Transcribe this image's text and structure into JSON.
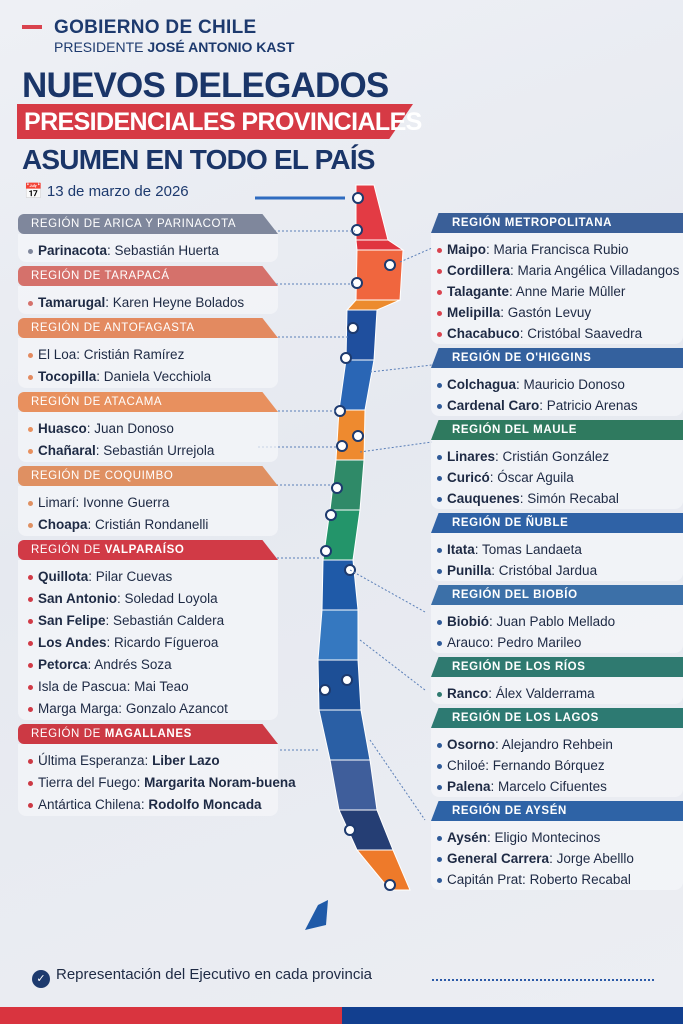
{
  "header": {
    "org": "GOBIERNO DE CHILE",
    "president_prefix": "PRESIDENTE ",
    "president_name": "JOSÉ ANTONIO KAST"
  },
  "title": {
    "line1": "NUEVOS DELEGADOS",
    "line2": "PRESIDENCIALES PROVINCIALES",
    "line3": "ASUMEN EN TODO EL PAÍS"
  },
  "date": {
    "icon": "calendar-icon",
    "text": "13 de marzo de 2026"
  },
  "left_regions": [
    {
      "prefix": "REGIÓN DE ARICA Y PARINACOTA",
      "name": "",
      "color": "#7f879c",
      "items": [
        {
          "province": "Parinacota",
          "delegate": "Sebastián Huerta",
          "bold": "province"
        }
      ]
    },
    {
      "prefix": "REGIÓN DE TARAPACÁ",
      "name": "",
      "color": "#d5716b",
      "items": [
        {
          "province": "Tamarugal",
          "delegate": "Karen Heyne Bolados",
          "bold": "province"
        }
      ]
    },
    {
      "prefix": "REGIÓN DE ANTOFAGASTA",
      "name": "",
      "color": "#e38a60",
      "items": [
        {
          "province": "El Loa",
          "delegate": "Cristián Ramírez",
          "bold": "none"
        },
        {
          "province": "Tocopilla",
          "delegate": "Daniela Vecchiola",
          "bold": "province"
        }
      ]
    },
    {
      "prefix": "REGIÓN DE ATACAMA",
      "name": "",
      "color": "#e8905e",
      "items": [
        {
          "province": "Huasco",
          "delegate": "Juan Donoso",
          "bold": "province"
        },
        {
          "province": "Chañaral",
          "delegate": "Sebastián Urrejola",
          "bold": "province"
        }
      ]
    },
    {
      "prefix": "REGIÓN DE COQUIMBO",
      "name": "",
      "color": "#df9062",
      "items": [
        {
          "province": "Limarí",
          "delegate": "Ivonne Guerra",
          "bold": "none"
        },
        {
          "province": "Choapa",
          "delegate": "Cristián Rondanelli",
          "bold": "province"
        }
      ]
    },
    {
      "prefix": "REGIÓN DE ",
      "name": "VALPARAÍSO",
      "color": "#d13a46",
      "items": [
        {
          "province": "Quillota",
          "delegate": "Pilar Cuevas",
          "bold": "province"
        },
        {
          "province": "San Antonio",
          "delegate": "Soledad Loyola",
          "bold": "province"
        },
        {
          "province": "San Felipe",
          "delegate": "Sebastián Caldera",
          "bold": "province"
        },
        {
          "province": "Los Andes",
          "delegate": "Ricardo Fígueroa",
          "bold": "province"
        },
        {
          "province": "Petorca",
          "delegate": "Andrés Soza",
          "bold": "province"
        },
        {
          "province": "Isla de Pascua",
          "delegate": "Mai Teao",
          "bold": "none"
        },
        {
          "province": "Marga Marga",
          "delegate": "Gonzalo Azancot",
          "bold": "none"
        }
      ]
    },
    {
      "prefix": "REGIÓN DE ",
      "name": "MAGALLANES",
      "color": "#cc3944",
      "items": [
        {
          "province": "Última Esperanza",
          "delegate": "Liber Lazo",
          "bold": "delegate"
        },
        {
          "province": "Tierra del Fuego",
          "delegate": "Margarita Noram-buena",
          "bold": "delegate"
        },
        {
          "province": "Antártica Chilena",
          "delegate": "Rodolfo Moncada",
          "bold": "delegate"
        }
      ]
    }
  ],
  "right_regions": [
    {
      "prefix": "REGIÓN METROPOLITANA",
      "name": "",
      "color": "#3a5f98",
      "dot": "#d9434e",
      "items": [
        {
          "province": "Maipo",
          "delegate": "Maria Francisca Rubio",
          "bold": "province"
        },
        {
          "province": "Cordillera",
          "delegate": "Maria Angélica Villadangos",
          "bold": "province"
        },
        {
          "province": "Talagante",
          "delegate": "Anne Marie Mûller",
          "bold": "province"
        },
        {
          "province": "Melipilla",
          "delegate": "Gastón Levuy",
          "bold": "province"
        },
        {
          "province": "Chacabuco",
          "delegate": "Cristóbal Saavedra",
          "bold": "province"
        }
      ]
    },
    {
      "prefix": "REGIÓN DE O'HIGGINS",
      "name": "",
      "color": "#34619e",
      "dot": "#2f5a98",
      "items": [
        {
          "province": "Colchagua",
          "delegate": "Mauricio Donoso",
          "bold": "province"
        },
        {
          "province": "Cardenal Caro",
          "delegate": "Patricio Arenas",
          "bold": "province"
        }
      ]
    },
    {
      "prefix": "REGIÓN DEL MAULE",
      "name": "",
      "color": "#2f7a5f",
      "dot": "#2f5a98",
      "items": [
        {
          "province": "Linares",
          "delegate": "Cristián González",
          "bold": "province"
        },
        {
          "province": "Curicó",
          "delegate": "Óscar Aguila",
          "bold": "province"
        },
        {
          "province": "Cauquenes",
          "delegate": "Simón Recabal",
          "bold": "province"
        }
      ]
    },
    {
      "prefix": "REGIÓN DE ÑUBLE",
      "name": "",
      "color": "#2f62a6",
      "dot": "#2f5a98",
      "items": [
        {
          "province": "Itata",
          "delegate": "Tomas Landaeta",
          "bold": "province"
        },
        {
          "province": "Punilla",
          "delegate": "Cristóbal Jardua",
          "bold": "province"
        }
      ]
    },
    {
      "prefix": "REGIÓN DEL BIOBÍO",
      "name": "",
      "color": "#3c70a8",
      "dot": "#2f5a98",
      "items": [
        {
          "province": "Biobió",
          "delegate": "Juan Pablo Mellado",
          "bold": "province"
        },
        {
          "province": "Arauco",
          "delegate": "Pedro Marileo",
          "bold": "none"
        }
      ]
    },
    {
      "prefix": "REGIÓN DE LOS RÍOS",
      "name": "",
      "color": "#2f7a70",
      "dot": "#2f7a70",
      "items": [
        {
          "province": "Ranco",
          "delegate": "Álex Valderrama",
          "bold": "province"
        }
      ]
    },
    {
      "prefix": "REGIÓN DE LOS LAGOS",
      "name": "",
      "color": "#2d7a72",
      "dot": "#2f5a98",
      "items": [
        {
          "province": "Osorno",
          "delegate": "Alejandro Rehbein",
          "bold": "province"
        },
        {
          "province": "Chiloé",
          "delegate": "Fernando Bórquez",
          "bold": "none"
        },
        {
          "province": "Palena",
          "delegate": "Marcelo Cifuentes",
          "bold": "province"
        }
      ]
    },
    {
      "prefix": "REGIÓN DE AYSÉN",
      "name": "",
      "color": "#2e63a6",
      "dot": "#2f5a98",
      "items": [
        {
          "province": "Aysén",
          "delegate": "Eligio Montecinos",
          "bold": "province"
        },
        {
          "province": "General Carrera",
          "delegate": "Jorge Abelllo",
          "bold": "province"
        },
        {
          "province": "Capitán Prat",
          "delegate": "Roberto Recabal",
          "bold": "none"
        }
      ]
    }
  ],
  "map": {
    "segment_colors": [
      "#e33b44",
      "#e0343f",
      "#f0663e",
      "#ec8b2e",
      "#1f4f9e",
      "#2a66b5",
      "#ee8a2f",
      "#2f8a68",
      "#23956a",
      "#1f5aa8",
      "#3578c0",
      "#1d4f96",
      "#2a5fa5",
      "#3f5e9b",
      "#253e74",
      "#ee7a2a"
    ]
  },
  "footer": {
    "icon": "check-circle-icon",
    "text": "Representación del Ejecutivo en cada provincia"
  }
}
